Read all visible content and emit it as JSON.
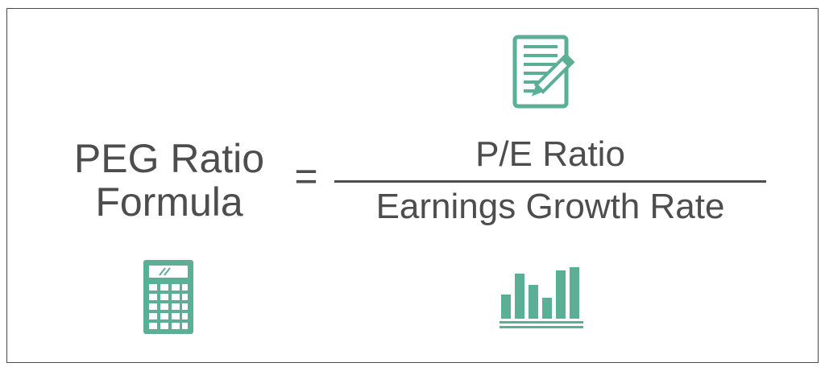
{
  "formula": {
    "lhs_line1": "PEG Ratio",
    "lhs_line2": "Formula",
    "equals": "=",
    "numerator": "P/E Ratio",
    "denominator": "Earnings Growth Rate"
  },
  "icons": {
    "document": "document-edit-icon",
    "calculator": "calculator-icon",
    "chart": "bar-chart-icon"
  },
  "colors": {
    "text": "#4d4d4d",
    "accent": "#5aaf95",
    "border": "#4a4a4a"
  }
}
